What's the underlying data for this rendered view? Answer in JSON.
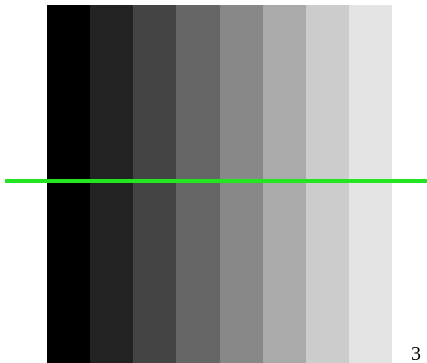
{
  "figure": {
    "label": "3"
  }
}
